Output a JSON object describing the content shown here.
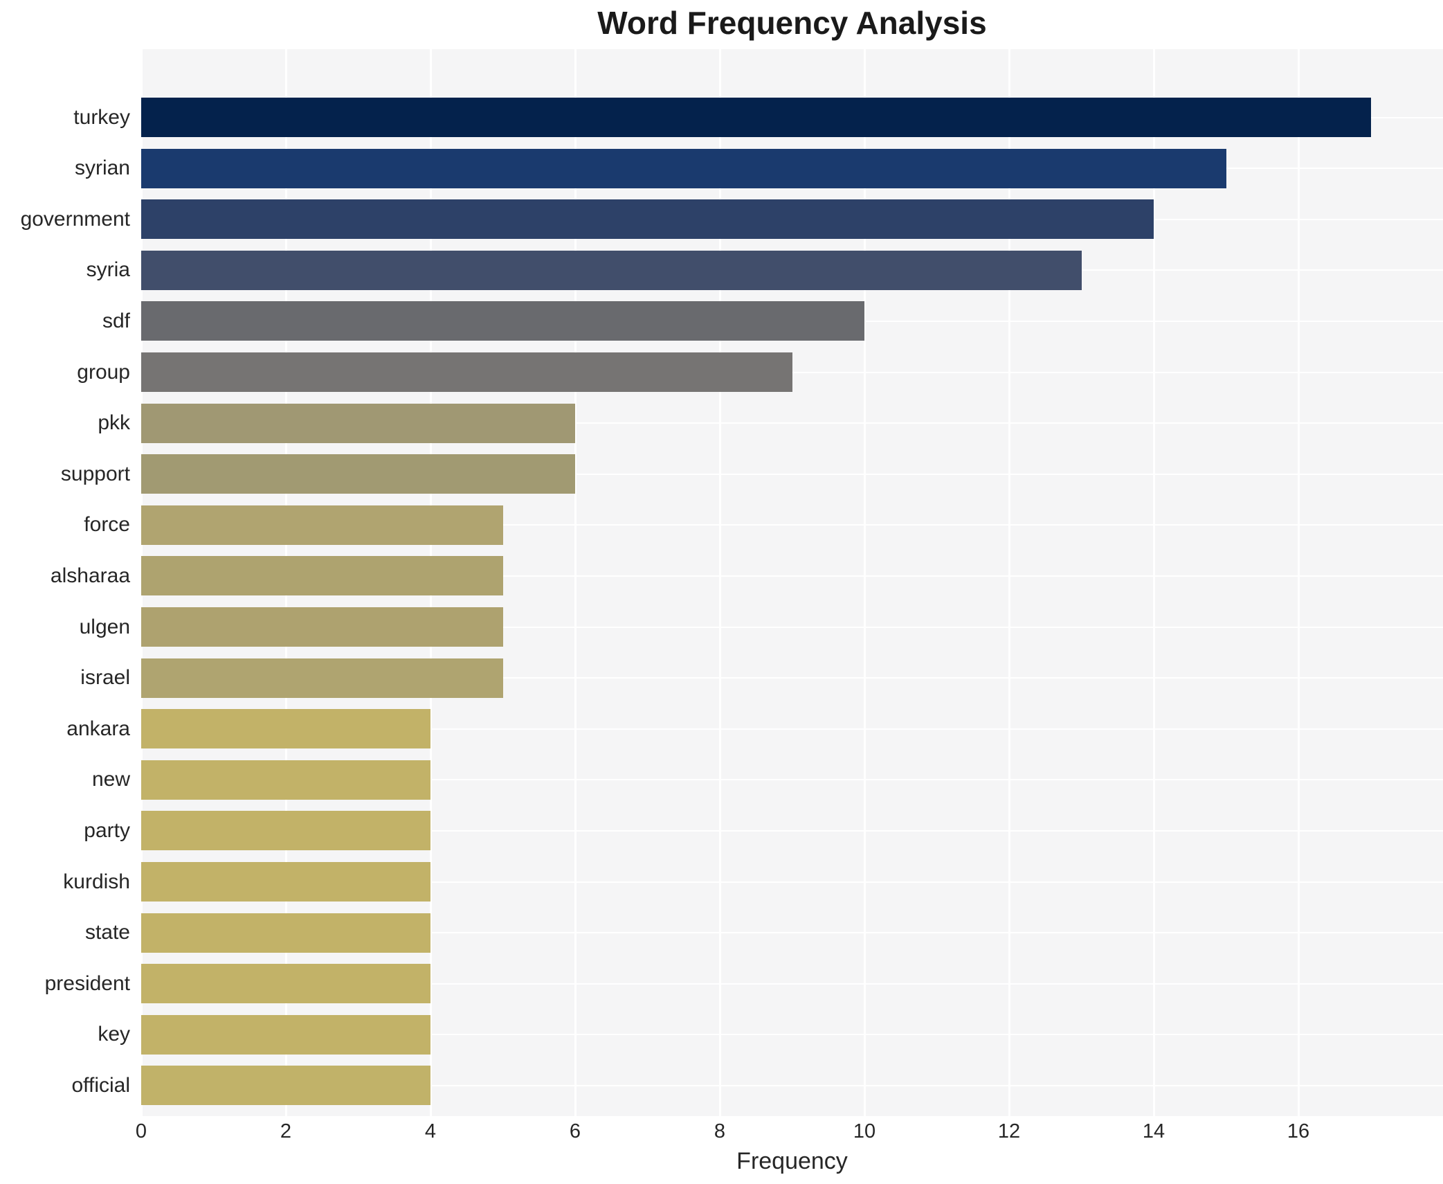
{
  "chart_data": {
    "type": "bar",
    "orientation": "horizontal",
    "title": "Word Frequency Analysis",
    "xlabel": "Frequency",
    "ylabel": "",
    "categories": [
      "turkey",
      "syrian",
      "government",
      "syria",
      "sdf",
      "group",
      "pkk",
      "support",
      "force",
      "alsharaa",
      "ulgen",
      "israel",
      "ankara",
      "new",
      "party",
      "kurdish",
      "state",
      "president",
      "key",
      "official"
    ],
    "values": [
      17,
      15,
      14,
      13,
      10,
      9,
      6,
      6,
      5,
      5,
      5,
      5,
      4,
      4,
      4,
      4,
      4,
      4,
      4,
      4
    ],
    "bar_colors": [
      "#04224c",
      "#1a3a6e",
      "#2d4168",
      "#414e6b",
      "#696a6e",
      "#767473",
      "#a09873",
      "#a19a72",
      "#b0a470",
      "#aea36f",
      "#aea26f",
      "#afa470",
      "#c2b268",
      "#c2b268",
      "#c2b268",
      "#c2b268",
      "#c2b268",
      "#c2b268",
      "#c2b268",
      "#c1b269"
    ],
    "x_ticks": [
      0,
      2,
      4,
      6,
      8,
      10,
      12,
      14,
      16
    ],
    "xlim": [
      0,
      18
    ],
    "grid": true,
    "legend": "none",
    "plot_bg_color": "#f5f5f6",
    "grid_color": "#ffffff",
    "title_color": "#1a1a1a",
    "tick_label_color": "#262626"
  }
}
